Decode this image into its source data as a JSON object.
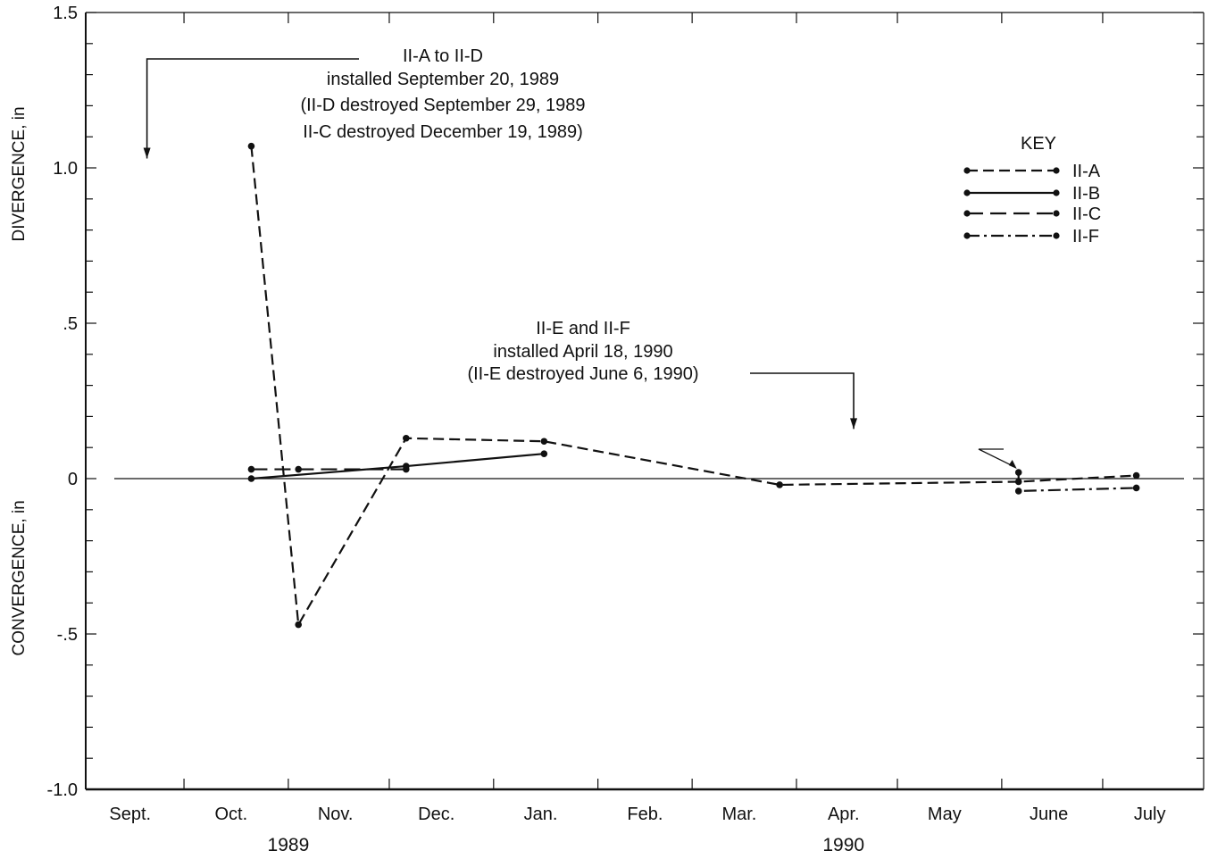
{
  "chart_data": {
    "type": "line",
    "ylabel_positive": "DIVERGENCE, in",
    "ylabel_negative": "CONVERGENCE, in",
    "ylim": [
      -1.0,
      1.5
    ],
    "y_ticks": [
      {
        "value": 1.5,
        "label": "1.5"
      },
      {
        "value": 1.0,
        "label": "1.0"
      },
      {
        "value": 0.5,
        "label": ".5"
      },
      {
        "value": 0,
        "label": "0"
      },
      {
        "value": -0.5,
        "label": "-.5"
      },
      {
        "value": -1.0,
        "label": "-1.0"
      }
    ],
    "xlim": [
      "1989-09-01",
      "1990-07-31"
    ],
    "x_month_labels": [
      {
        "label": "Sept.",
        "date": "1989-09-15"
      },
      {
        "label": "Oct.",
        "date": "1989-10-15"
      },
      {
        "label": "Nov.",
        "date": "1989-11-15"
      },
      {
        "label": "Dec.",
        "date": "1989-12-15"
      },
      {
        "label": "Jan.",
        "date": "1990-01-15"
      },
      {
        "label": "Feb.",
        "date": "1990-02-15"
      },
      {
        "label": "Mar.",
        "date": "1990-03-15"
      },
      {
        "label": "Apr.",
        "date": "1990-04-15"
      },
      {
        "label": "May",
        "date": "1990-05-15"
      },
      {
        "label": "June",
        "date": "1990-06-15"
      },
      {
        "label": "July",
        "date": "1990-07-15"
      }
    ],
    "x_month_boundaries": [
      "1989-10-01",
      "1989-11-01",
      "1989-12-01",
      "1990-01-01",
      "1990-02-01",
      "1990-03-01",
      "1990-04-01",
      "1990-05-01",
      "1990-06-01",
      "1990-07-01"
    ],
    "year_labels": [
      {
        "label": "1989",
        "date": "1989-11-01"
      },
      {
        "label": "1990",
        "date": "1990-04-15"
      }
    ],
    "legend_title": "KEY",
    "legend_position": "top-right",
    "series": [
      {
        "name": "II-A",
        "style": "dashed",
        "points": [
          {
            "x": "1989-10-21",
            "y": 1.07
          },
          {
            "x": "1989-11-04",
            "y": -0.47
          },
          {
            "x": "1989-12-06",
            "y": 0.13
          },
          {
            "x": "1990-01-16",
            "y": 0.12
          },
          {
            "x": "1990-03-27",
            "y": -0.02
          },
          {
            "x": "1990-06-06",
            "y": -0.01
          },
          {
            "x": "1990-07-11",
            "y": 0.01
          }
        ]
      },
      {
        "name": "II-B",
        "style": "solid",
        "points": [
          {
            "x": "1989-10-21",
            "y": 0.0
          },
          {
            "x": "1989-12-06",
            "y": 0.04
          },
          {
            "x": "1990-01-16",
            "y": 0.08
          }
        ]
      },
      {
        "name": "II-C",
        "style": "long-dash",
        "points": [
          {
            "x": "1989-10-21",
            "y": 0.03
          },
          {
            "x": "1989-11-04",
            "y": 0.03
          },
          {
            "x": "1989-12-06",
            "y": 0.03
          }
        ]
      },
      {
        "name": "II-F",
        "style": "dash-dot",
        "points": [
          {
            "x": "1990-06-06",
            "y": 0.02
          },
          {
            "x": "1990-06-06",
            "y": -0.04
          },
          {
            "x": "1990-07-11",
            "y": -0.03
          }
        ]
      }
    ],
    "annotations": [
      {
        "lines": [
          "II-A to II-D",
          "installed September 20, 1989",
          "(II-D destroyed September 29, 1989",
          "II-C destroyed December 19, 1989)"
        ],
        "arrow_date": "1989-09-20",
        "arrow_y": 1.03
      },
      {
        "lines": [
          "II-E and II-F",
          "installed April 18, 1990",
          "(II-E destroyed June 6, 1990)"
        ],
        "arrow_date": "1990-04-18",
        "arrow_y": 0.16
      }
    ]
  }
}
